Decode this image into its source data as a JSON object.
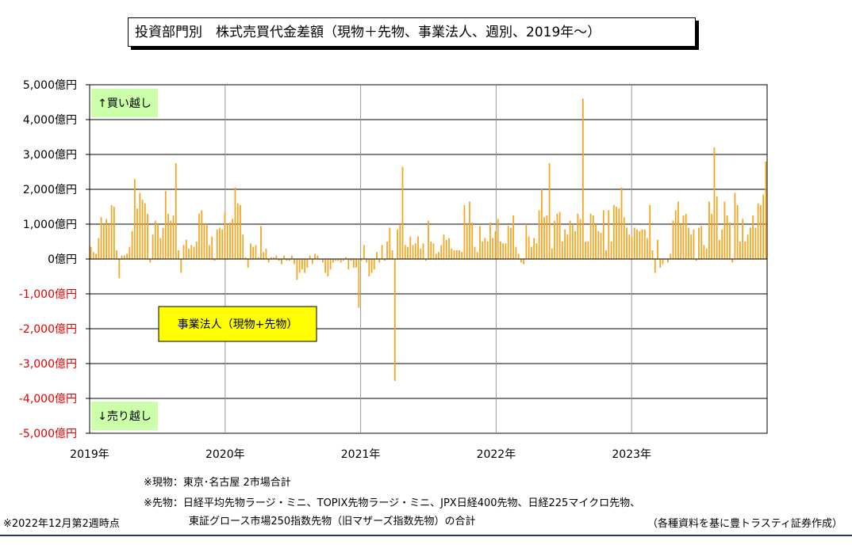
{
  "page": {
    "title": "投資部門別　株式売買代金差額（現物＋先物、事業法人、週別、2019年～）",
    "notes": {
      "spot": "※現物：東京･名古屋 2市場合計",
      "futures_line1": "※先物：日経平均先物ラージ・ミニ、TOPIX先物ラージ・ミニ、JPX日経400先物、日経225マイクロ先物、",
      "futures_line2": "東証グロース市場250指数先物（旧マザーズ指数先物）の合計",
      "asof": "※2022年12月第2週時点",
      "source": "（各種資料を基に豊トラスティ証券作成）"
    }
  },
  "chart_data": {
    "type": "bar",
    "series_label": "事業法人（現物+先物）",
    "buy_label": "↑買い越し",
    "sell_label": "↓売り越し",
    "y_unit": "億円",
    "ylim": [
      -5000,
      5000
    ],
    "y_ticks": [
      "5,000億円",
      "4,000億円",
      "3,000億円",
      "2,000億円",
      "1,000億円",
      "0億円",
      "-1,000億円",
      "-2,000億円",
      "-3,000億円",
      "-4,000億円",
      "-5,000億円"
    ],
    "x_ticks": [
      "2019年",
      "2020年",
      "2021年",
      "2022年",
      "2023年"
    ],
    "x_start": 2019,
    "x_end": 2024,
    "grid": true,
    "colors": {
      "bar": "#F5A623",
      "pos_tick": "#000000",
      "neg_tick": "#E00000",
      "label_box": "#FFFF00",
      "corner_box": "#CCFFAA"
    },
    "values": [
      350,
      200,
      150,
      600,
      1200,
      1000,
      1150,
      1000,
      1550,
      1500,
      250,
      -550,
      100,
      100,
      150,
      350,
      800,
      2300,
      1450,
      1900,
      1700,
      1600,
      1300,
      -100,
      700,
      1100,
      1000,
      600,
      900,
      1950,
      1300,
      1100,
      1250,
      2750,
      250,
      -400,
      400,
      550,
      300,
      400,
      350,
      500,
      1300,
      1400,
      1000,
      1000,
      400,
      650,
      -50,
      850,
      900,
      850,
      1350,
      1000,
      1050,
      1150,
      2050,
      1600,
      1550,
      700,
      50,
      -250,
      450,
      350,
      400,
      50,
      950,
      200,
      300,
      -100,
      50,
      50,
      100,
      -50,
      -150,
      100,
      -50,
      -50,
      100,
      -150,
      -600,
      -400,
      -300,
      -400,
      -250,
      100,
      -150,
      150,
      100,
      0,
      -100,
      -400,
      -500,
      -300,
      -100,
      -50,
      -50,
      -100,
      -50,
      50,
      -300,
      -50,
      -250,
      -250,
      -1400,
      -50,
      400,
      -100,
      -500,
      -400,
      -300,
      200,
      -100,
      400,
      -50,
      500,
      900,
      250,
      -3500,
      850,
      1000,
      2650,
      400,
      350,
      650,
      400,
      450,
      650,
      300,
      450,
      -50,
      1100,
      500,
      450,
      150,
      200,
      400,
      700,
      550,
      600,
      300,
      250,
      250,
      250,
      200,
      1550,
      1000,
      1650,
      1050,
      350,
      200,
      950,
      500,
      600,
      500,
      1050,
      600,
      800,
      1150,
      500,
      450,
      450,
      950,
      900,
      1250,
      350,
      150,
      -100,
      -150,
      1000,
      650,
      350,
      600,
      450,
      1400,
      2000,
      1200,
      1250,
      2750,
      300,
      1100,
      1300,
      1350,
      500,
      850,
      700,
      1100,
      1000,
      800,
      1300,
      1150,
      4600,
      500,
      500,
      1300,
      1250,
      1000,
      800,
      750,
      1400,
      250,
      1400,
      500,
      1550,
      1500,
      1450,
      2050,
      1200,
      900,
      700,
      650,
      900,
      850,
      800,
      850,
      850,
      600,
      1550,
      250,
      -400,
      550,
      -250,
      -150,
      0,
      -100,
      150,
      1100,
      1400,
      1650,
      1000,
      1250,
      1300,
      900,
      700,
      850,
      -50,
      900,
      950,
      400,
      300,
      1650,
      1300,
      3200,
      1800,
      550,
      850,
      1650,
      1250,
      1050,
      -100,
      1900,
      1550,
      500,
      1150,
      500,
      700,
      900,
      1250,
      900,
      1600,
      1550,
      1850,
      2800
    ]
  }
}
